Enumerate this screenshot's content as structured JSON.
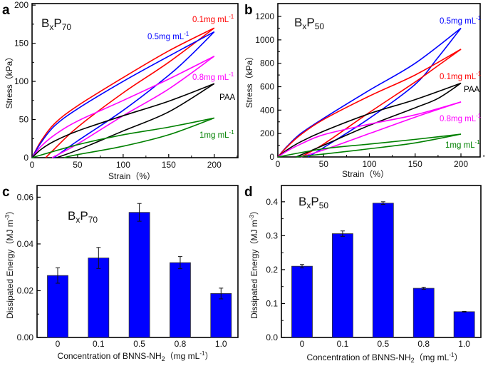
{
  "chart_data": [
    {
      "panel": "a",
      "type": "line",
      "title": {
        "b": "B",
        "x": "x",
        "p": "P",
        "n": "70"
      },
      "xlabel": "Strain（%）",
      "ylabel": "Stress（kPa）",
      "xlim": [
        0,
        226
      ],
      "ylim": [
        0,
        202
      ],
      "xticks": [
        "0",
        "50",
        "100",
        "150",
        "200"
      ],
      "yticks": [
        "0",
        "50",
        "100",
        "150",
        "200"
      ],
      "grid": false,
      "series": [
        {
          "name": "0.1mg mL",
          "sup": "-1",
          "color": "#ff0000",
          "loading": [
            [
              0,
              0
            ],
            [
              10,
              22
            ],
            [
              25,
              45
            ],
            [
              50,
              68
            ],
            [
              100,
              105
            ],
            [
              150,
              140
            ],
            [
              200,
              170
            ]
          ],
          "unloading": [
            [
              200,
              170
            ],
            [
              150,
              125
            ],
            [
              100,
              85
            ],
            [
              50,
              40
            ],
            [
              25,
              12
            ],
            [
              15,
              0
            ]
          ]
        },
        {
          "name": "0.5mg mL",
          "sup": "-1",
          "color": "#0000ff",
          "loading": [
            [
              0,
              0
            ],
            [
              10,
              20
            ],
            [
              25,
              42
            ],
            [
              50,
              64
            ],
            [
              100,
              100
            ],
            [
              150,
              133
            ],
            [
              200,
              165
            ]
          ],
          "unloading": [
            [
              200,
              165
            ],
            [
              175,
              135
            ],
            [
              150,
              108
            ],
            [
              100,
              62
            ],
            [
              50,
              22
            ],
            [
              24,
              0
            ]
          ]
        },
        {
          "name": "0.8mg mL",
          "sup": "-1",
          "color": "#ff00ff",
          "loading": [
            [
              0,
              0
            ],
            [
              10,
              15
            ],
            [
              25,
              30
            ],
            [
              50,
              48
            ],
            [
              100,
              75
            ],
            [
              150,
              103
            ],
            [
              200,
              133
            ]
          ],
          "unloading": [
            [
              200,
              133
            ],
            [
              150,
              90
            ],
            [
              100,
              55
            ],
            [
              50,
              18
            ],
            [
              22,
              0
            ]
          ]
        },
        {
          "name": "PAA",
          "sup": "",
          "color": "#000000",
          "loading": [
            [
              0,
              0
            ],
            [
              10,
              11
            ],
            [
              25,
              22
            ],
            [
              50,
              35
            ],
            [
              100,
              55
            ],
            [
              150,
              74
            ],
            [
              200,
              97
            ]
          ],
          "unloading": [
            [
              200,
              97
            ],
            [
              150,
              60
            ],
            [
              100,
              35
            ],
            [
              50,
              10
            ],
            [
              27,
              0
            ]
          ]
        },
        {
          "name": "1mg mL",
          "sup": "-1",
          "color": "#008000",
          "loading": [
            [
              0,
              0
            ],
            [
              50,
              17
            ],
            [
              100,
              30
            ],
            [
              150,
              40
            ],
            [
              200,
              52
            ]
          ],
          "unloading": [
            [
              200,
              52
            ],
            [
              150,
              30
            ],
            [
              100,
              15
            ],
            [
              50,
              4
            ],
            [
              35,
              0
            ]
          ]
        }
      ]
    },
    {
      "panel": "b",
      "type": "line",
      "title": {
        "b": "B",
        "x": "x",
        "p": "P",
        "n": "50"
      },
      "xlabel": "Strain（%）",
      "ylabel": "Stress（kPa）",
      "xlim": [
        0,
        221
      ],
      "ylim": [
        0,
        1310
      ],
      "xticks": [
        "0",
        "50",
        "100",
        "150",
        "200"
      ],
      "yticks": [
        "0",
        "200",
        "400",
        "600",
        "800",
        "1000",
        "1200"
      ],
      "grid": false,
      "series": [
        {
          "name": "0.5mg mL",
          "sup": "-1",
          "color": "#0000ff",
          "loading": [
            [
              0,
              0
            ],
            [
              10,
              90
            ],
            [
              25,
              200
            ],
            [
              50,
              330
            ],
            [
              100,
              570
            ],
            [
              150,
              800
            ],
            [
              200,
              1100
            ]
          ],
          "unloading": [
            [
              200,
              1100
            ],
            [
              175,
              850
            ],
            [
              150,
              620
            ],
            [
              100,
              330
            ],
            [
              50,
              80
            ],
            [
              33,
              0
            ]
          ]
        },
        {
          "name": "0.1mg mL",
          "sup": "-1",
          "color": "#ff0000",
          "loading": [
            [
              0,
              0
            ],
            [
              10,
              85
            ],
            [
              25,
              190
            ],
            [
              50,
              320
            ],
            [
              100,
              520
            ],
            [
              150,
              700
            ],
            [
              200,
              920
            ]
          ],
          "unloading": [
            [
              200,
              920
            ],
            [
              175,
              780
            ],
            [
              150,
              640
            ],
            [
              100,
              380
            ],
            [
              50,
              110
            ],
            [
              25,
              0
            ]
          ]
        },
        {
          "name": "PAA",
          "sup": "",
          "color": "#000000",
          "loading": [
            [
              0,
              0
            ],
            [
              10,
              60
            ],
            [
              25,
              130
            ],
            [
              50,
              220
            ],
            [
              100,
              370
            ],
            [
              150,
              490
            ],
            [
              200,
              630
            ]
          ],
          "unloading": [
            [
              200,
              630
            ],
            [
              175,
              500
            ],
            [
              150,
              420
            ],
            [
              100,
              270
            ],
            [
              50,
              100
            ],
            [
              20,
              0
            ]
          ]
        },
        {
          "name": "0.8mg mL",
          "sup": "-1",
          "color": "#ff00ff",
          "loading": [
            [
              0,
              0
            ],
            [
              10,
              50
            ],
            [
              25,
              110
            ],
            [
              50,
              190
            ],
            [
              100,
              280
            ],
            [
              150,
              360
            ],
            [
              200,
              470
            ]
          ],
          "unloading": [
            [
              200,
              470
            ],
            [
              150,
              340
            ],
            [
              100,
              200
            ],
            [
              50,
              60
            ],
            [
              25,
              0
            ]
          ]
        },
        {
          "name": "1mg mL",
          "sup": "-1",
          "color": "#008000",
          "loading": [
            [
              0,
              0
            ],
            [
              50,
              70
            ],
            [
              100,
              110
            ],
            [
              150,
              150
            ],
            [
              200,
              195
            ]
          ],
          "unloading": [
            [
              200,
              195
            ],
            [
              150,
              120
            ],
            [
              100,
              70
            ],
            [
              50,
              25
            ],
            [
              20,
              0
            ]
          ]
        }
      ]
    },
    {
      "panel": "c",
      "type": "bar",
      "title": {
        "b": "B",
        "x": "x",
        "p": "P",
        "n": "70"
      },
      "xlabel": {
        "main": "Concentration of BNNS-NH",
        "sub": "2",
        "unit": "（mg mL",
        "sup": "-1",
        "close": "）"
      },
      "ylabel": {
        "main": "Dissipated Energy（MJ m",
        "sup": "-3",
        "close": "）"
      },
      "ylim": [
        0,
        0.065
      ],
      "yticks": [
        "0.00",
        "0.02",
        "0.04",
        "0.06"
      ],
      "categories": [
        "0",
        "0.1",
        "0.5",
        "0.8",
        "1.0"
      ],
      "values": [
        0.0265,
        0.034,
        0.0535,
        0.032,
        0.0188
      ],
      "errors": [
        0.0033,
        0.0045,
        0.0038,
        0.0026,
        0.0023
      ],
      "color": "#0000ff"
    },
    {
      "panel": "d",
      "type": "bar",
      "title": {
        "b": "B",
        "x": "x",
        "p": "P",
        "n": "50"
      },
      "xlabel": {
        "main": "Concentration of BNNS-NH",
        "sub": "2",
        "unit": "（mg mL",
        "sup": "-1",
        "close": "）"
      },
      "ylabel": {
        "main": "Dissipated Energy（MJ m",
        "sup": "-3",
        "close": "）"
      },
      "ylim": [
        0,
        0.448
      ],
      "yticks": [
        "0.0",
        "0.1",
        "0.2",
        "0.3",
        "0.4"
      ],
      "categories": [
        "0",
        "0.1",
        "0.5",
        "0.8",
        "1.0"
      ],
      "values": [
        0.21,
        0.306,
        0.396,
        0.145,
        0.076
      ],
      "errors": [
        0.005,
        0.008,
        0.004,
        0.003,
        0.001
      ],
      "color": "#0000ff"
    }
  ]
}
